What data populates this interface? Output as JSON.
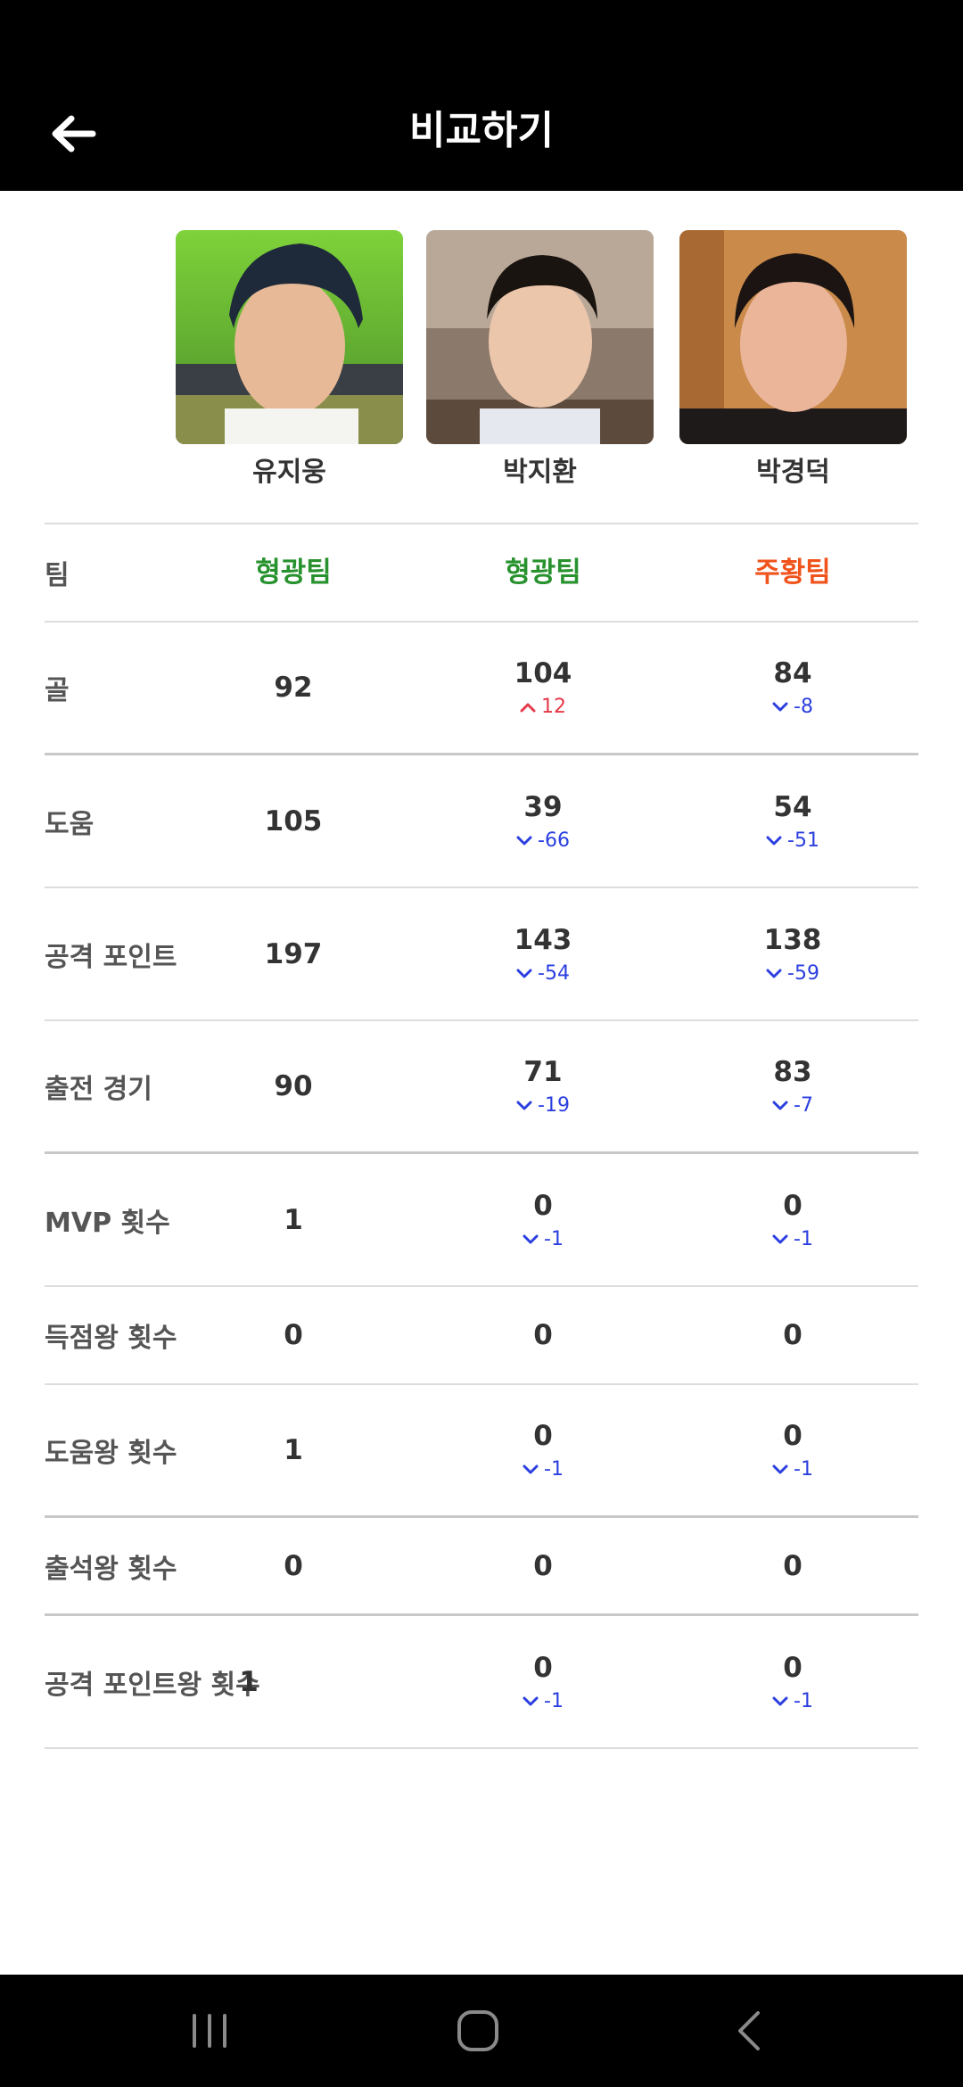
{
  "header": {
    "title": "비교하기",
    "back_icon": "arrow-left-icon"
  },
  "players": [
    {
      "name": "유지웅"
    },
    {
      "name": "박지환"
    },
    {
      "name": "박경덕"
    }
  ],
  "colors": {
    "team_green": "#27922e",
    "team_orange": "#f0531c",
    "diff_down": "#2b3fe0",
    "diff_up": "#e5394a",
    "header_bg": "#000000"
  },
  "stats": {
    "team": {
      "label": "팀",
      "p1": "형광팀",
      "p2": "형광팀",
      "p3": "주황팀"
    },
    "goals": {
      "label": "골",
      "p1": "92",
      "p2": "104",
      "p2_diff": "12",
      "p3": "84",
      "p3_diff": "-8"
    },
    "assists": {
      "label": "도움",
      "p1": "105",
      "p2": "39",
      "p2_diff": "-66",
      "p3": "54",
      "p3_diff": "-51"
    },
    "attack_points": {
      "label": "공격 포인트",
      "p1": "197",
      "p2": "143",
      "p2_diff": "-54",
      "p3": "138",
      "p3_diff": "-59"
    },
    "matches": {
      "label": "출전 경기",
      "p1": "90",
      "p2": "71",
      "p2_diff": "-19",
      "p3": "83",
      "p3_diff": "-7"
    },
    "mvp": {
      "label": "MVP 횟수",
      "p1": "1",
      "p2": "0",
      "p2_diff": "-1",
      "p3": "0",
      "p3_diff": "-1"
    },
    "top_scorer": {
      "label": "득점왕 횟수",
      "p1": "0",
      "p2": "0",
      "p3": "0"
    },
    "top_assist": {
      "label": "도움왕 횟수",
      "p1": "1",
      "p2": "0",
      "p2_diff": "-1",
      "p3": "0",
      "p3_diff": "-1"
    },
    "top_attendance": {
      "label": "출석왕 횟수",
      "p1": "0",
      "p2": "0",
      "p3": "0"
    },
    "top_attack_points": {
      "label": "공격 포인트왕 횟수",
      "p1": "1",
      "p2": "0",
      "p2_diff": "-1",
      "p3": "0",
      "p3_diff": "-1"
    }
  },
  "navbar": {
    "recents_icon": "recent-apps-icon",
    "home_icon": "home-icon",
    "back_icon": "back-chevron-icon"
  }
}
